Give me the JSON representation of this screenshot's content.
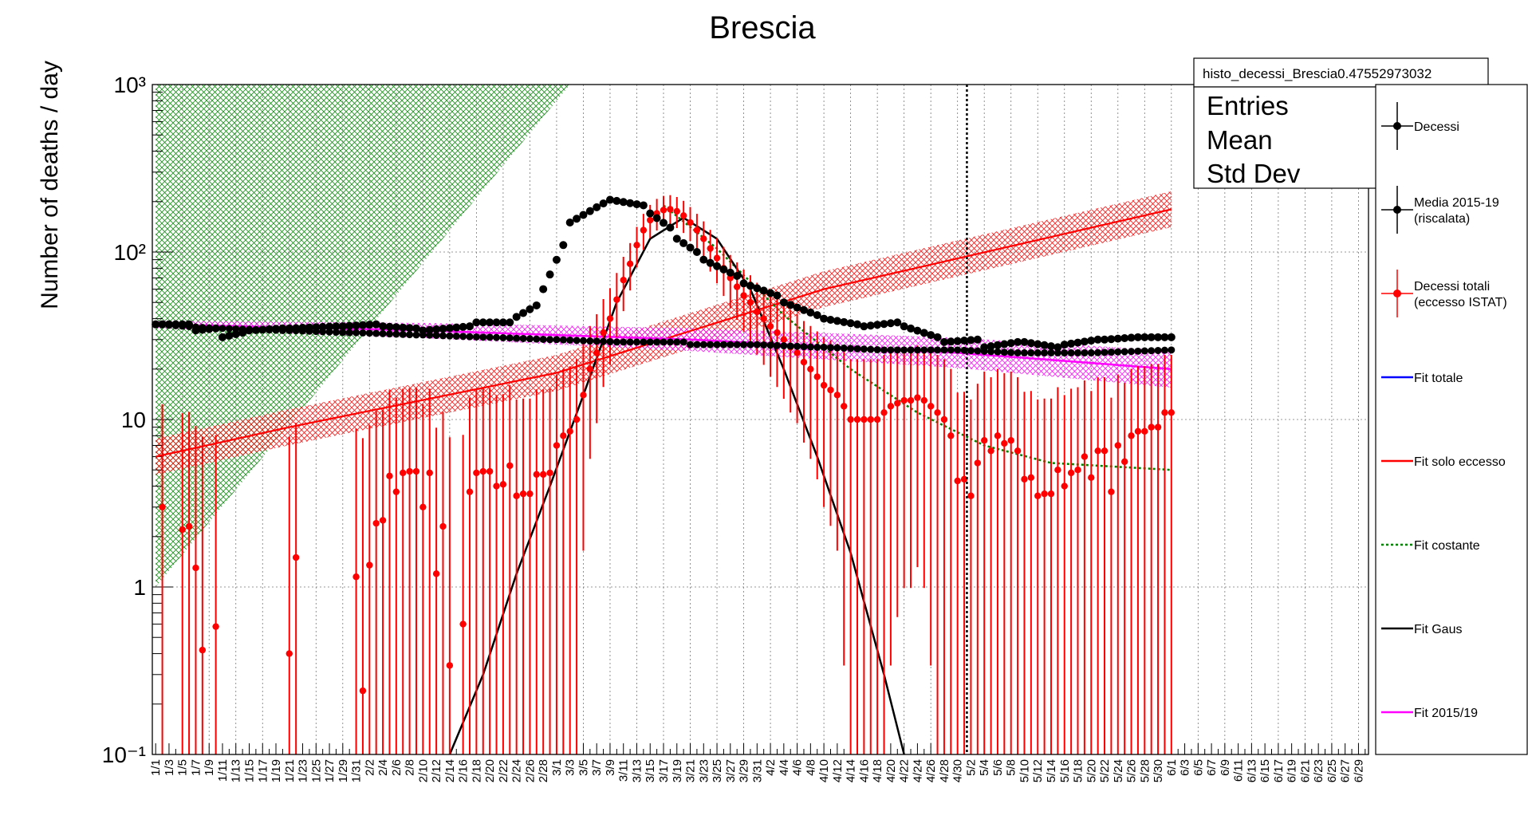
{
  "chart_data": {
    "type": "scatter",
    "title": "Brescia",
    "ylabel": "Number of deaths / day",
    "xlabel": "",
    "yscale": "log",
    "ylim": [
      0.1,
      1000
    ],
    "ytick_labels": [
      "10⁻¹",
      "1",
      "10",
      "10²",
      "10³"
    ],
    "x_tick_labels": [
      "1/1",
      "1/3",
      "1/5",
      "1/7",
      "1/9",
      "1/11",
      "1/13",
      "1/15",
      "1/17",
      "1/19",
      "1/21",
      "1/23",
      "1/25",
      "1/27",
      "1/29",
      "1/31",
      "2/2",
      "2/4",
      "2/6",
      "2/8",
      "2/10",
      "2/12",
      "2/14",
      "2/16",
      "2/18",
      "2/20",
      "2/22",
      "2/24",
      "2/26",
      "2/28",
      "3/1",
      "3/3",
      "3/5",
      "3/7",
      "3/9",
      "3/11",
      "3/13",
      "3/15",
      "3/17",
      "3/19",
      "3/21",
      "3/23",
      "3/25",
      "3/27",
      "3/29",
      "3/31",
      "4/2",
      "4/4",
      "4/6",
      "4/8",
      "4/10",
      "4/12",
      "4/14",
      "4/16",
      "4/18",
      "4/20",
      "4/22",
      "4/24",
      "4/26",
      "4/28",
      "4/30",
      "5/2",
      "5/4",
      "5/6",
      "5/8",
      "5/10",
      "5/12",
      "5/14",
      "5/16",
      "5/18",
      "5/20",
      "5/22",
      "5/24",
      "5/26",
      "5/28",
      "5/30",
      "6/1",
      "6/3",
      "6/5",
      "6/7",
      "6/9",
      "6/11",
      "6/13",
      "6/15",
      "6/17",
      "6/19",
      "6/21",
      "6/23",
      "6/25",
      "6/27",
      "6/29"
    ],
    "vertical_marker": "5/2",
    "grid": true,
    "legend_position": "right",
    "stats_box": {
      "name": "histo_decessi_Brescia0.47552973032",
      "rows": [
        "Entries",
        "Mean",
        "Std Dev"
      ]
    },
    "legend": [
      {
        "label": [
          "Decessi"
        ],
        "color": "#000000",
        "style": "marker"
      },
      {
        "label": [
          "Media 2015-19",
          "(riscalata)"
        ],
        "color": "#000000",
        "style": "marker"
      },
      {
        "label": [
          "Decessi totali",
          "(eccesso ISTAT)"
        ],
        "color": "#ff0000",
        "style": "marker"
      },
      {
        "label": [
          "Fit totale"
        ],
        "color": "#0000ff",
        "style": "line"
      },
      {
        "label": [
          "Fit solo eccesso"
        ],
        "color": "#ff0000",
        "style": "line"
      },
      {
        "label": [
          "Fit costante"
        ],
        "color": "#008000",
        "style": "dotted"
      },
      {
        "label": [
          "Fit Gaus"
        ],
        "color": "#000000",
        "style": "line"
      },
      {
        "label": [
          "Fit 2015/19"
        ],
        "color": "#ff00ff",
        "style": "line"
      }
    ],
    "series": [
      {
        "name": "Decessi",
        "color": "#000000",
        "day_ranges": [
          [
            1,
            6,
            37,
            37
          ],
          [
            7,
            10,
            34,
            35
          ],
          [
            11,
            14,
            31,
            33
          ],
          [
            15,
            20,
            34,
            35
          ],
          [
            21,
            28,
            35,
            36
          ],
          [
            29,
            34,
            36,
            37
          ],
          [
            35,
            40,
            36,
            35
          ],
          [
            41,
            48,
            34,
            36
          ],
          [
            49,
            54,
            38,
            38
          ],
          [
            55,
            58,
            41,
            48
          ],
          [
            59,
            62,
            60,
            110
          ],
          [
            63,
            68,
            150,
            195
          ],
          [
            69,
            74,
            205,
            190
          ],
          [
            75,
            78,
            170,
            140
          ],
          [
            79,
            82,
            120,
            100
          ],
          [
            83,
            88,
            90,
            72
          ],
          [
            89,
            94,
            65,
            55
          ],
          [
            95,
            100,
            50,
            42
          ],
          [
            101,
            106,
            40,
            37
          ],
          [
            107,
            112,
            36,
            38
          ],
          [
            113,
            118,
            36,
            31
          ],
          [
            119,
            124,
            29,
            30
          ],
          [
            125,
            130,
            27,
            29
          ],
          [
            131,
            136,
            29,
            27
          ],
          [
            137,
            142,
            28,
            30
          ],
          [
            143,
            148,
            30,
            31
          ],
          [
            149,
            153,
            31,
            31
          ]
        ]
      },
      {
        "name": "Media 2015-19 (riscalata)",
        "color": "#000000",
        "day_ranges": [
          [
            1,
            10,
            37,
            35
          ],
          [
            11,
            20,
            35,
            34
          ],
          [
            21,
            30,
            34,
            33
          ],
          [
            31,
            40,
            33,
            32
          ],
          [
            41,
            50,
            32,
            31
          ],
          [
            51,
            60,
            31,
            30
          ],
          [
            61,
            70,
            30,
            29
          ],
          [
            71,
            80,
            29,
            29
          ],
          [
            81,
            90,
            28,
            28
          ],
          [
            91,
            100,
            28,
            27
          ],
          [
            101,
            110,
            27,
            26
          ],
          [
            111,
            120,
            26,
            26
          ],
          [
            121,
            130,
            26,
            25
          ],
          [
            131,
            140,
            25,
            25
          ],
          [
            141,
            153,
            25,
            26
          ]
        ]
      },
      {
        "name": "Decessi totali (eccesso ISTAT)",
        "color": "#ff0000",
        "points": [
          [
            2,
            3
          ],
          [
            5,
            2.2
          ],
          [
            6,
            2.3
          ],
          [
            7,
            1.3
          ],
          [
            8,
            0.42
          ],
          [
            10,
            0.58
          ],
          [
            21,
            0.4
          ],
          [
            22,
            1.5
          ],
          [
            31,
            1.15
          ],
          [
            32,
            0.24
          ],
          [
            33,
            1.35
          ],
          [
            34,
            2.4
          ],
          [
            35,
            2.5
          ],
          [
            36,
            4.6
          ],
          [
            37,
            3.7
          ],
          [
            38,
            4.8
          ],
          [
            39,
            4.9
          ],
          [
            40,
            4.9
          ],
          [
            41,
            3.0
          ],
          [
            42,
            4.8
          ],
          [
            43,
            1.2
          ],
          [
            44,
            2.3
          ],
          [
            45,
            0.34
          ],
          [
            47,
            0.6
          ],
          [
            48,
            3.7
          ],
          [
            49,
            4.8
          ],
          [
            50,
            4.9
          ],
          [
            51,
            4.9
          ],
          [
            52,
            4.0
          ],
          [
            53,
            4.1
          ],
          [
            54,
            5.3
          ],
          [
            55,
            3.5
          ],
          [
            56,
            3.6
          ],
          [
            57,
            3.6
          ],
          [
            58,
            4.7
          ],
          [
            59,
            4.7
          ],
          [
            60,
            4.8
          ],
          [
            61,
            7
          ],
          [
            62,
            8
          ],
          [
            63,
            8.5
          ],
          [
            64,
            10
          ],
          [
            65,
            14
          ],
          [
            66,
            20
          ],
          [
            67,
            25
          ],
          [
            68,
            33
          ],
          [
            69,
            40
          ],
          [
            70,
            52
          ],
          [
            71,
            68
          ],
          [
            72,
            85
          ],
          [
            73,
            110
          ],
          [
            74,
            135
          ],
          [
            75,
            155
          ],
          [
            76,
            170
          ],
          [
            77,
            178
          ],
          [
            78,
            180
          ],
          [
            79,
            175
          ],
          [
            80,
            165
          ],
          [
            81,
            150
          ],
          [
            82,
            135
          ],
          [
            83,
            120
          ],
          [
            84,
            105
          ],
          [
            85,
            92
          ],
          [
            86,
            80
          ],
          [
            87,
            70
          ],
          [
            88,
            62
          ],
          [
            89,
            55
          ],
          [
            90,
            50
          ],
          [
            91,
            44
          ],
          [
            92,
            40
          ],
          [
            93,
            36
          ],
          [
            94,
            33
          ],
          [
            95,
            30
          ],
          [
            96,
            27
          ],
          [
            97,
            25
          ],
          [
            98,
            22
          ],
          [
            99,
            20
          ],
          [
            100,
            18
          ],
          [
            101,
            16
          ],
          [
            102,
            15
          ],
          [
            103,
            14
          ],
          [
            104,
            12
          ],
          [
            105,
            10
          ],
          [
            106,
            10
          ],
          [
            107,
            10
          ],
          [
            108,
            10
          ],
          [
            109,
            10
          ],
          [
            110,
            11
          ],
          [
            111,
            12
          ],
          [
            112,
            12.5
          ],
          [
            113,
            13
          ],
          [
            114,
            13
          ],
          [
            115,
            13.5
          ],
          [
            116,
            13
          ],
          [
            117,
            12
          ],
          [
            118,
            11
          ],
          [
            119,
            10
          ],
          [
            120,
            8
          ],
          [
            121,
            4.3
          ],
          [
            122,
            4.4
          ],
          [
            123,
            3.5
          ],
          [
            124,
            5.5
          ],
          [
            125,
            7.5
          ],
          [
            126,
            6.5
          ],
          [
            127,
            8
          ],
          [
            128,
            7.2
          ],
          [
            129,
            7.5
          ],
          [
            130,
            6.5
          ],
          [
            131,
            4.4
          ],
          [
            132,
            4.5
          ],
          [
            133,
            3.5
          ],
          [
            134,
            3.6
          ],
          [
            135,
            3.6
          ],
          [
            136,
            5
          ],
          [
            137,
            4
          ],
          [
            138,
            4.8
          ],
          [
            139,
            5
          ],
          [
            140,
            6
          ],
          [
            141,
            4.5
          ],
          [
            142,
            6.5
          ],
          [
            143,
            6.5
          ],
          [
            144,
            3.7
          ],
          [
            145,
            7
          ],
          [
            146,
            5.6
          ],
          [
            147,
            8
          ],
          [
            148,
            8.5
          ],
          [
            149,
            8.5
          ],
          [
            150,
            9
          ],
          [
            151,
            9
          ],
          [
            152,
            11
          ],
          [
            153,
            11
          ]
        ]
      },
      {
        "name": "Fit solo eccesso",
        "color": "#ff0000",
        "points": [
          [
            1,
            6
          ],
          [
            21,
            9
          ],
          [
            61,
            19
          ],
          [
            101,
            60
          ],
          [
            153,
            180
          ]
        ]
      },
      {
        "name": "Fit costante",
        "color": "#008000",
        "points": [
          [
            77,
            190
          ],
          [
            85,
            105
          ],
          [
            95,
            42
          ],
          [
            105,
            20
          ],
          [
            115,
            11
          ],
          [
            125,
            7
          ],
          [
            135,
            5.5
          ],
          [
            153,
            5
          ]
        ]
      },
      {
        "name": "Fit Gaus",
        "color": "#000000",
        "points": [
          [
            45,
            0.1
          ],
          [
            50,
            0.3
          ],
          [
            55,
            1.2
          ],
          [
            60,
            4
          ],
          [
            65,
            14
          ],
          [
            70,
            50
          ],
          [
            75,
            120
          ],
          [
            80,
            160
          ],
          [
            85,
            120
          ],
          [
            90,
            60
          ],
          [
            95,
            20
          ],
          [
            100,
            6
          ],
          [
            105,
            1.6
          ],
          [
            110,
            0.3
          ],
          [
            113,
            0.1
          ]
        ]
      },
      {
        "name": "Fit 2015/19",
        "color": "#ff00ff",
        "points": [
          [
            1,
            37
          ],
          [
            41,
            34
          ],
          [
            81,
            30
          ],
          [
            121,
            25
          ],
          [
            153,
            20
          ]
        ]
      }
    ]
  }
}
